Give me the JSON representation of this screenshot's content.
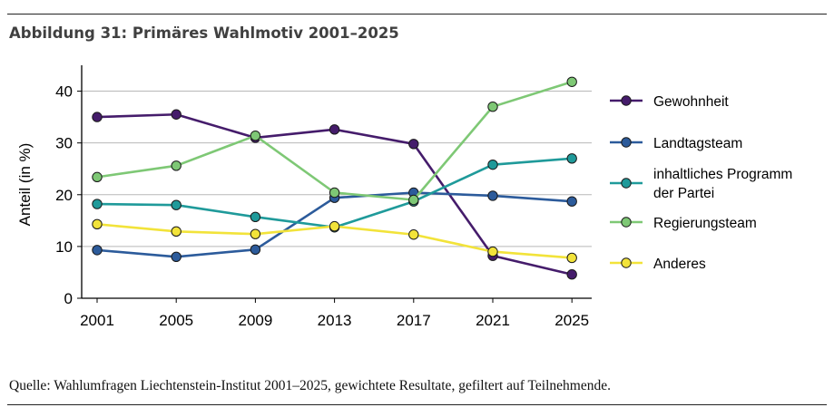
{
  "figure": {
    "title": "Abbildung 31: Primäres Wahlmotiv 2001–2025",
    "source": "Quelle: Wahlumfragen Liechtenstein-Institut 2001–2025, gewichtete Resultate, gefiltert auf Teilnehmende."
  },
  "chart_data": {
    "type": "line",
    "title": "Abbildung 31: Primäres Wahlmotiv 2001–2025",
    "xlabel": "",
    "ylabel": "Anteil (in %)",
    "x": [
      "2001",
      "2005",
      "2009",
      "2013",
      "2017",
      "2021",
      "2025"
    ],
    "yticks": [
      "0",
      "10",
      "20",
      "30",
      "40"
    ],
    "ylim": [
      0,
      45
    ],
    "grid": "horizontal",
    "legend_position": "right",
    "series": [
      {
        "name": "Gewohnheit",
        "color": "#451c6b",
        "values": [
          35.0,
          35.5,
          31.0,
          32.6,
          29.8,
          8.2,
          4.6
        ]
      },
      {
        "name": "Landtagsteam",
        "color": "#2c5b9b",
        "values": [
          9.3,
          8.0,
          9.4,
          19.4,
          20.4,
          19.8,
          18.7
        ]
      },
      {
        "name": "inhaltliches Programm der Partei",
        "legend_lines": [
          "inhaltliches Programm",
          "der Partei"
        ],
        "color": "#1f9a9a",
        "values": [
          18.2,
          18.0,
          15.7,
          13.7,
          18.7,
          25.8,
          27.0
        ]
      },
      {
        "name": "Regierungsteam",
        "color": "#7ec875",
        "values": [
          23.4,
          25.6,
          31.4,
          20.4,
          19.0,
          37.0,
          41.8
        ]
      },
      {
        "name": "Anderes",
        "color": "#f2e33a",
        "values": [
          14.3,
          12.9,
          12.4,
          13.9,
          12.3,
          9.0,
          7.8
        ]
      }
    ]
  }
}
